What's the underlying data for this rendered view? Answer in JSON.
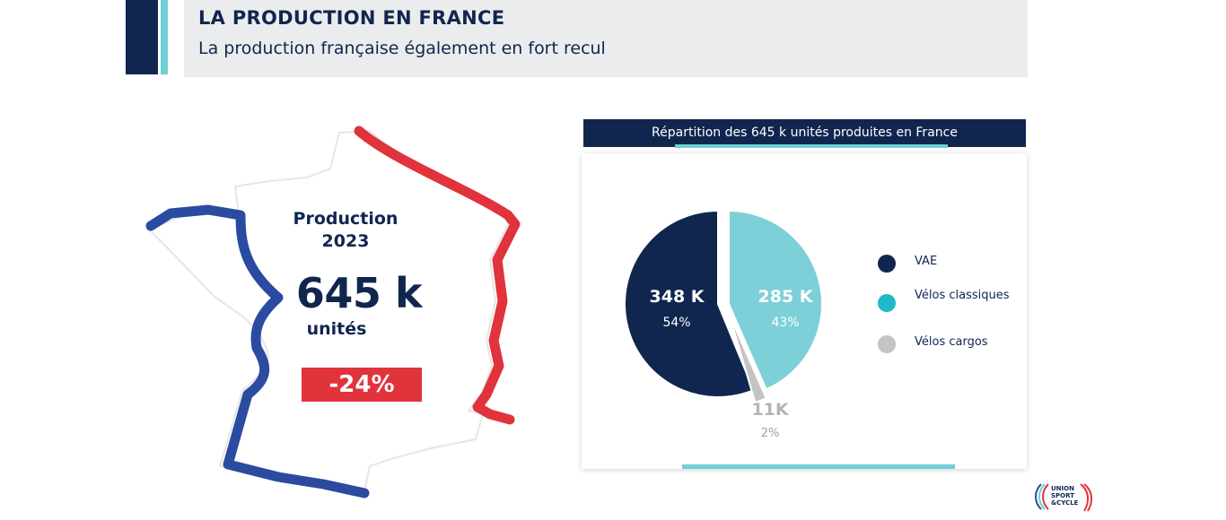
{
  "header": {
    "title": "LA PRODUCTION EN FRANCE",
    "subtitle": "La production française également en fort recul"
  },
  "production": {
    "label_line1": "Production",
    "label_line2": "2023",
    "value": "645 k",
    "unit": "unités",
    "change": "-24%"
  },
  "colors": {
    "navy": "#10264f",
    "cyan": "#7dd0d8",
    "grey": "#c4c4c4",
    "france_blue": "#2a4ba0",
    "france_red": "#e0333c"
  },
  "chart_data": {
    "type": "pie",
    "title": "Répartition des 645 k unités produites en France",
    "slices": [
      {
        "name": "VAE",
        "value_label": "348 K",
        "percent": 54,
        "percent_label": "54%",
        "color": "#10264f"
      },
      {
        "name": "Vélos classiques",
        "value_label": "285 K",
        "percent": 43,
        "percent_label": "43%",
        "color": "#7dd0d8"
      },
      {
        "name": "Vélos cargos",
        "value_label": "11K",
        "percent": 2,
        "percent_label": "2%",
        "color": "#c4c4c4"
      }
    ],
    "legend": [
      "VAE",
      "Vélos classiques",
      "Vélos cargos"
    ],
    "legend_position": "right"
  },
  "legend_colors": [
    "#10264f",
    "#1fb9c8",
    "#c4c4c4"
  ],
  "logo": {
    "line1": "UNION",
    "line2": "SPORT",
    "line3": "&CYCLE"
  }
}
